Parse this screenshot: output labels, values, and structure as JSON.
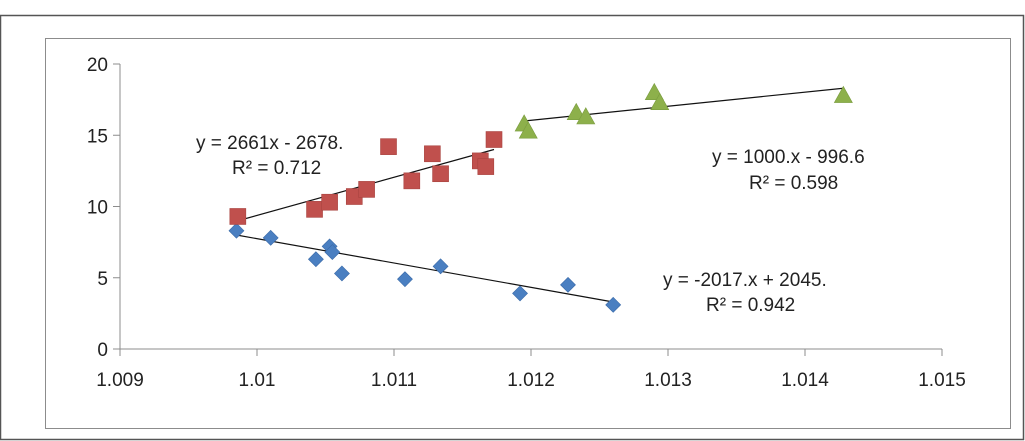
{
  "chart_data": {
    "type": "scatter",
    "title": "",
    "xlabel": "",
    "ylabel": "",
    "xlim": [
      1.009,
      1.015
    ],
    "ylim": [
      0,
      20
    ],
    "x_ticks": [
      1.009,
      1.01,
      1.011,
      1.012,
      1.013,
      1.014,
      1.015
    ],
    "x_tick_labels": [
      "1.009",
      "1.01",
      "1.011",
      "1.012",
      "1.013",
      "1.014",
      "1.015"
    ],
    "y_ticks": [
      0,
      5,
      10,
      15,
      20
    ],
    "y_tick_labels": [
      "0",
      "5",
      "10",
      "15",
      "20"
    ],
    "grid": false,
    "legend": "none",
    "series": [
      {
        "marker": "diamond",
        "color": "#4a7fc1",
        "points": [
          {
            "x": 1.00985,
            "y": 8.3
          },
          {
            "x": 1.0101,
            "y": 7.8
          },
          {
            "x": 1.01043,
            "y": 6.3
          },
          {
            "x": 1.01053,
            "y": 7.2
          },
          {
            "x": 1.01055,
            "y": 6.8
          },
          {
            "x": 1.01062,
            "y": 5.3
          },
          {
            "x": 1.01108,
            "y": 4.9
          },
          {
            "x": 1.01134,
            "y": 5.8
          },
          {
            "x": 1.01192,
            "y": 3.9
          },
          {
            "x": 1.01227,
            "y": 4.5
          },
          {
            "x": 1.0126,
            "y": 3.1
          }
        ],
        "trendline": {
          "x": [
            1.00985,
            1.0126
          ],
          "y": [
            8.0,
            3.3
          ]
        },
        "equation": "y = -2017.x + 2045.",
        "r2": "R² = 0.942"
      },
      {
        "marker": "square",
        "color": "#c0504d",
        "points": [
          {
            "x": 1.00986,
            "y": 9.3
          },
          {
            "x": 1.01042,
            "y": 9.8
          },
          {
            "x": 1.01053,
            "y": 10.3
          },
          {
            "x": 1.01071,
            "y": 10.7
          },
          {
            "x": 1.0108,
            "y": 11.2
          },
          {
            "x": 1.01096,
            "y": 14.2
          },
          {
            "x": 1.01113,
            "y": 11.8
          },
          {
            "x": 1.01128,
            "y": 13.7
          },
          {
            "x": 1.01134,
            "y": 12.3
          },
          {
            "x": 1.01163,
            "y": 13.2
          },
          {
            "x": 1.01167,
            "y": 12.8
          },
          {
            "x": 1.01173,
            "y": 14.7
          }
        ],
        "trendline": {
          "x": [
            1.00986,
            1.01173
          ],
          "y": [
            9.0,
            14.0
          ]
        },
        "equation": "y = 2661x - 2678.",
        "r2": "R² = 0.712"
      },
      {
        "marker": "triangle",
        "color": "#8db04b",
        "points": [
          {
            "x": 1.01195,
            "y": 15.8
          },
          {
            "x": 1.01198,
            "y": 15.3
          },
          {
            "x": 1.01233,
            "y": 16.6
          },
          {
            "x": 1.0124,
            "y": 16.3
          },
          {
            "x": 1.0129,
            "y": 18.0
          },
          {
            "x": 1.01294,
            "y": 17.3
          },
          {
            "x": 1.01428,
            "y": 17.8
          }
        ],
        "trendline": {
          "x": [
            1.01195,
            1.01428
          ],
          "y": [
            16.0,
            18.3
          ]
        },
        "equation": "y = 1000.x - 996.6",
        "r2": "R² = 0.598"
      }
    ]
  }
}
